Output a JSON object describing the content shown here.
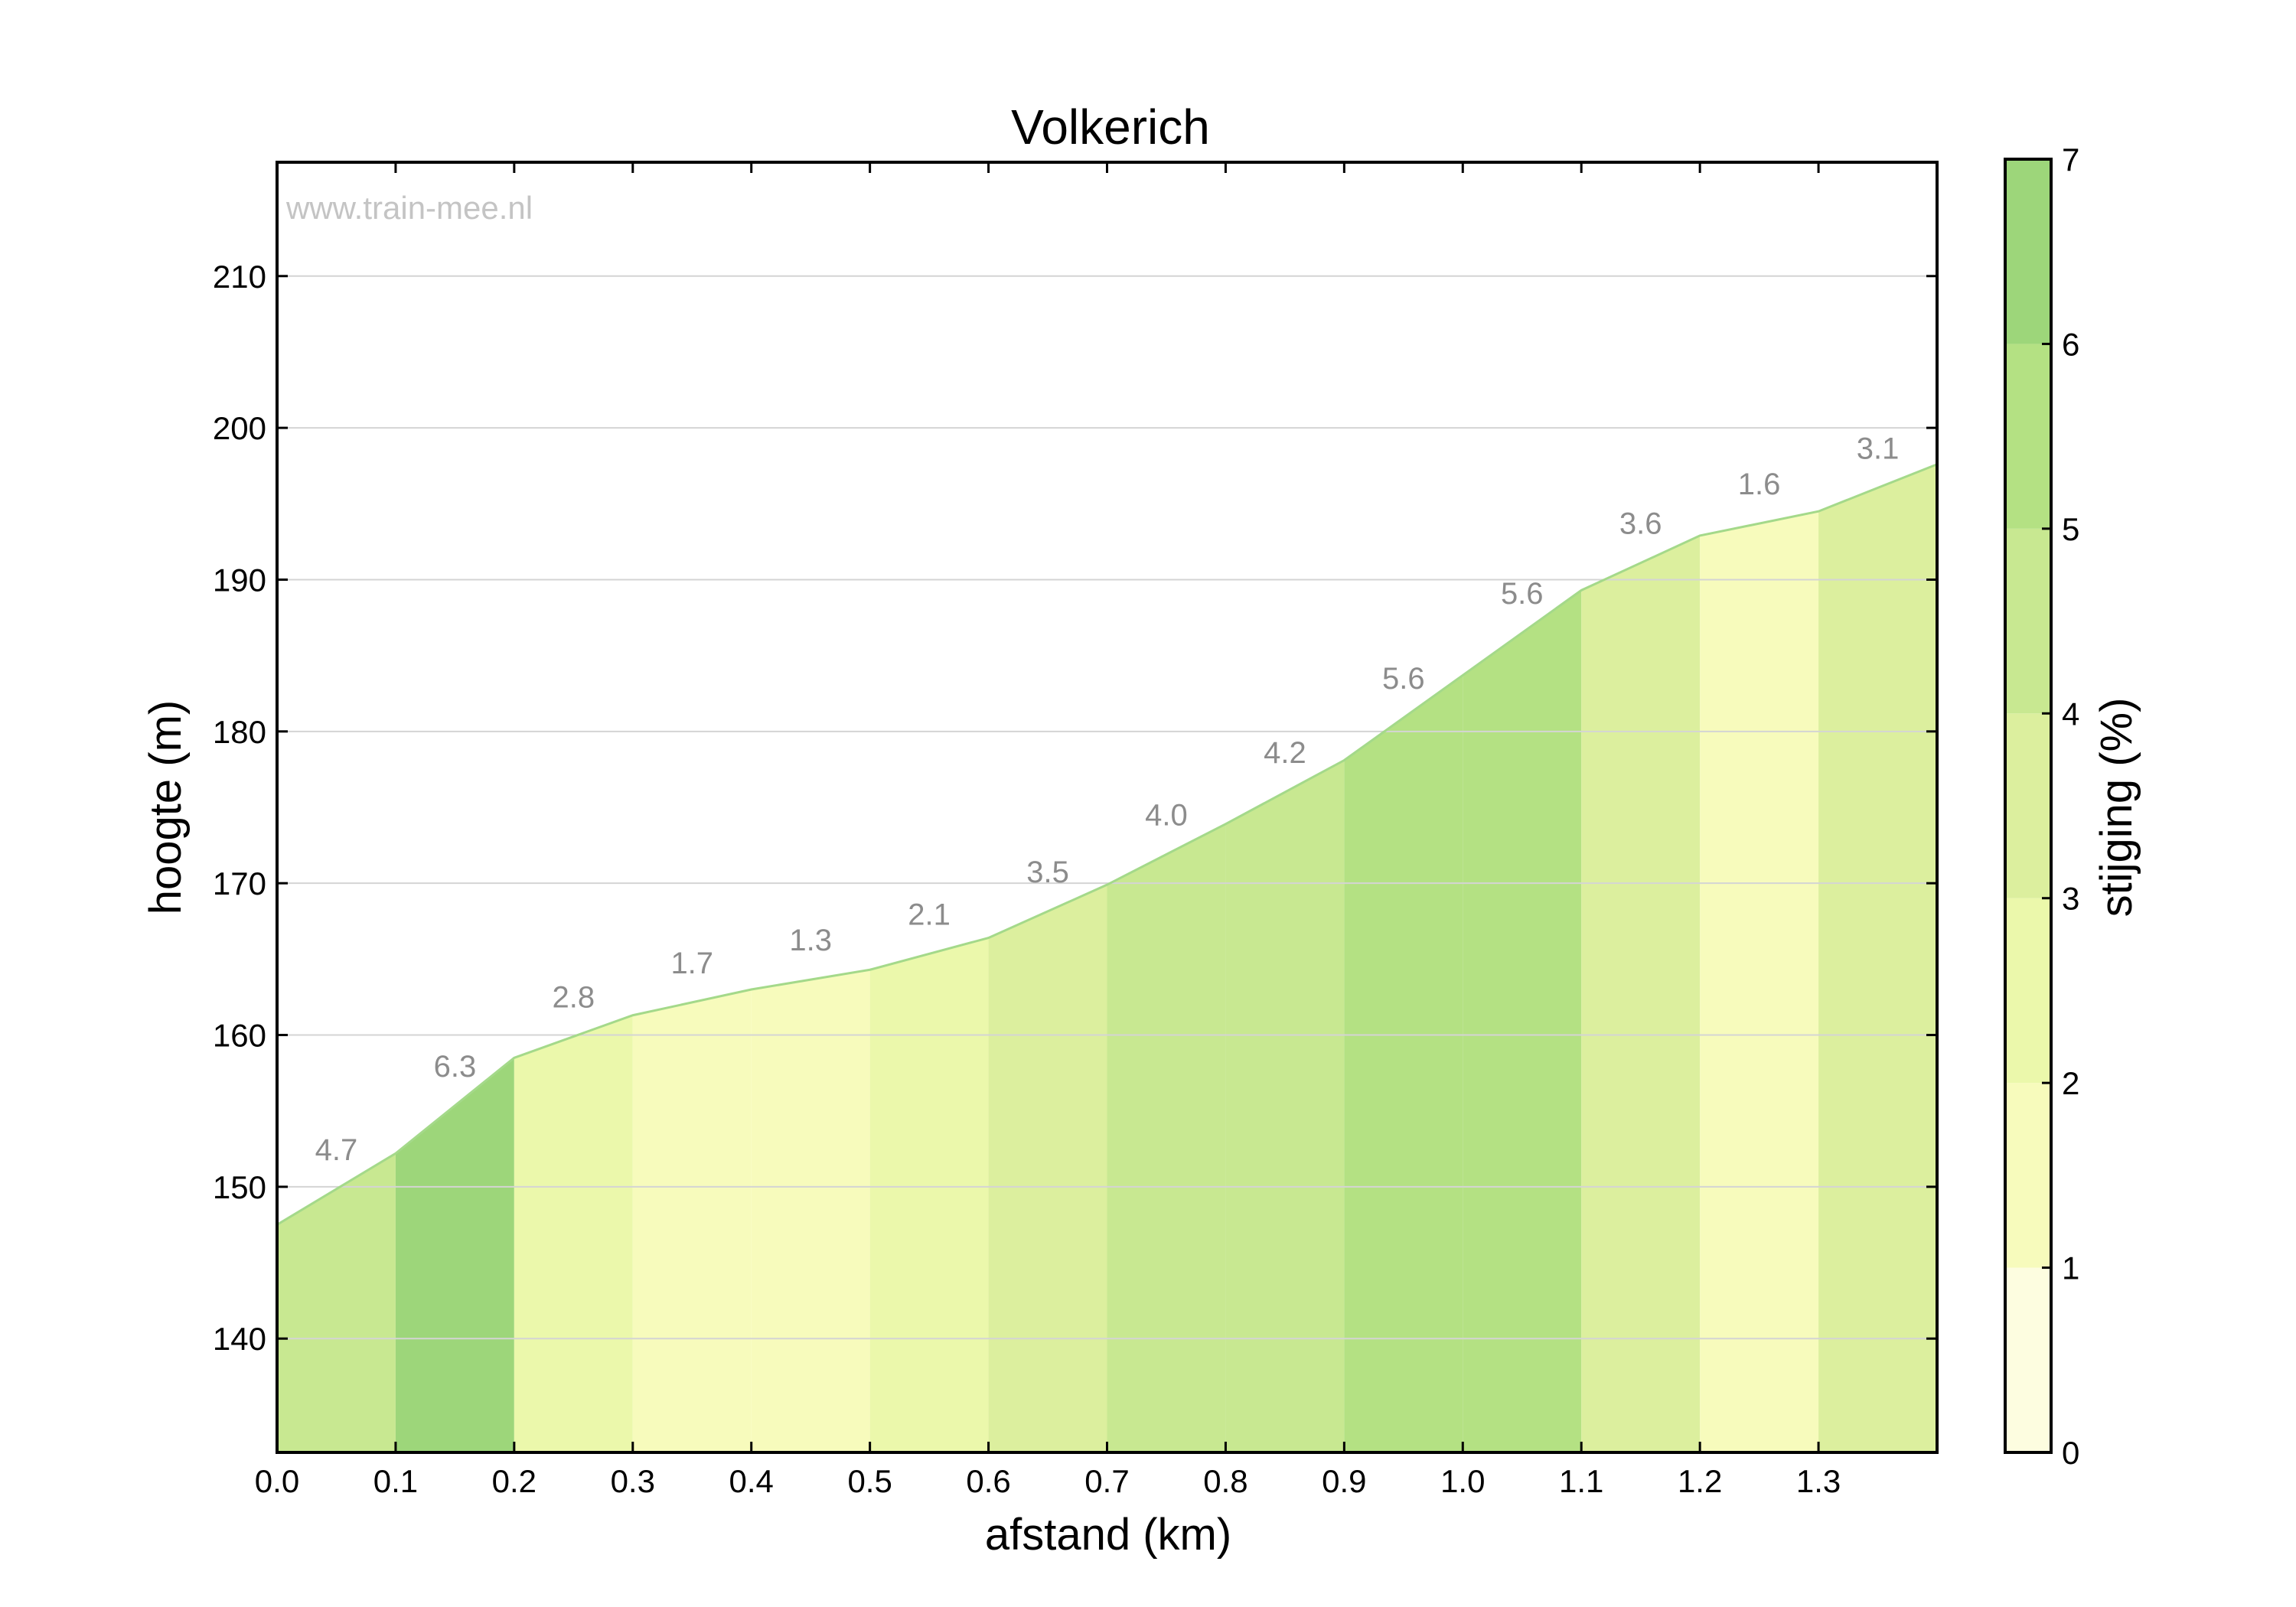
{
  "chart_data": {
    "type": "area",
    "title": "Volkerich",
    "xlabel": "afstand (km)",
    "ylabel": "hoogte (m)",
    "watermark": "www.train-mee.nl",
    "xlim": [
      0,
      1.4
    ],
    "ylim": [
      132.5,
      217.5
    ],
    "x_ticks": [
      "0.0",
      "0.1",
      "0.2",
      "0.3",
      "0.4",
      "0.5",
      "0.6",
      "0.7",
      "0.8",
      "0.9",
      "1.0",
      "1.1",
      "1.2",
      "1.3"
    ],
    "y_ticks": [
      "140",
      "150",
      "160",
      "170",
      "180",
      "190",
      "200",
      "210"
    ],
    "grid": "horizontal",
    "profile": {
      "x": [
        0.0,
        0.1,
        0.2,
        0.3,
        0.4,
        0.5,
        0.6,
        0.7,
        0.8,
        0.9,
        1.0,
        1.1,
        1.2,
        1.3,
        1.4
      ],
      "y": [
        147.5,
        152.2,
        158.5,
        161.3,
        163.0,
        164.3,
        166.4,
        169.9,
        173.9,
        178.1,
        183.7,
        189.3,
        192.9,
        194.5,
        197.6
      ]
    },
    "segments": [
      {
        "start": 0.0,
        "end": 0.1,
        "grade": "4.7"
      },
      {
        "start": 0.1,
        "end": 0.2,
        "grade": "6.3"
      },
      {
        "start": 0.2,
        "end": 0.3,
        "grade": "2.8"
      },
      {
        "start": 0.3,
        "end": 0.4,
        "grade": "1.7"
      },
      {
        "start": 0.4,
        "end": 0.5,
        "grade": "1.3"
      },
      {
        "start": 0.5,
        "end": 0.6,
        "grade": "2.1"
      },
      {
        "start": 0.6,
        "end": 0.7,
        "grade": "3.5"
      },
      {
        "start": 0.7,
        "end": 0.8,
        "grade": "4.0"
      },
      {
        "start": 0.8,
        "end": 0.9,
        "grade": "4.2"
      },
      {
        "start": 0.9,
        "end": 1.0,
        "grade": "5.6"
      },
      {
        "start": 1.0,
        "end": 1.1,
        "grade": "5.6"
      },
      {
        "start": 1.1,
        "end": 1.2,
        "grade": "3.6"
      },
      {
        "start": 1.2,
        "end": 1.3,
        "grade": "1.6"
      },
      {
        "start": 1.3,
        "end": 1.4,
        "grade": "3.1"
      }
    ],
    "colorbar": {
      "label": "stijging (%)",
      "range": [
        0,
        7
      ],
      "ticks": [
        "0",
        "1",
        "2",
        "3",
        "4",
        "5",
        "6",
        "7"
      ],
      "bands": [
        "#fdfde0",
        "#f7fbbc",
        "#ebf8ab",
        "#dcef9e",
        "#c8e891",
        "#b4e183",
        "#9dd67a"
      ]
    },
    "line_color": "#a4d98a"
  }
}
